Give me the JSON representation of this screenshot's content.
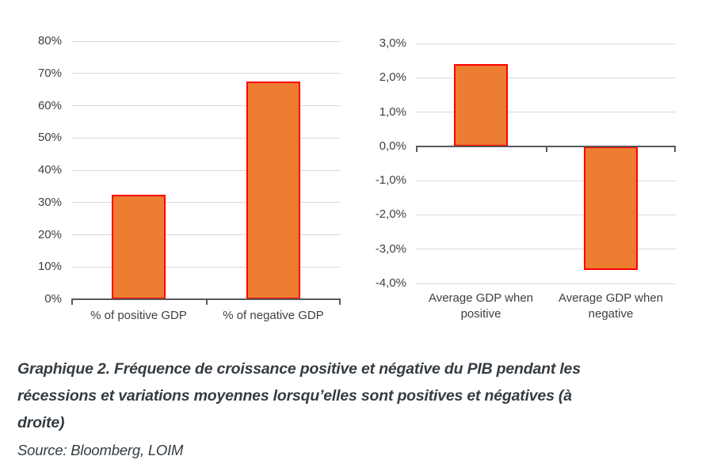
{
  "chart_data": [
    {
      "type": "bar",
      "title": "",
      "categories": [
        "% of positive GDP",
        "% of negative GDP"
      ],
      "values": [
        32.5,
        67.5
      ],
      "ylim": [
        0,
        80
      ],
      "yticks": [
        {
          "value": 80,
          "label": "80%"
        },
        {
          "value": 70,
          "label": "70%"
        },
        {
          "value": 60,
          "label": "60%"
        },
        {
          "value": 50,
          "label": "50%"
        },
        {
          "value": 40,
          "label": "40%"
        },
        {
          "value": 30,
          "label": "30%"
        },
        {
          "value": 20,
          "label": "20%"
        },
        {
          "value": 10,
          "label": "10%"
        },
        {
          "value": 0,
          "label": "0%"
        }
      ],
      "grid": true,
      "legend": false,
      "bar_fill": "#ED7D31",
      "bar_border": "#FF0000"
    },
    {
      "type": "bar",
      "title": "",
      "categories": [
        "Average GDP when positive",
        "Average GDP when negative"
      ],
      "values": [
        2.4,
        -3.6
      ],
      "ylim": [
        -4,
        3
      ],
      "yticks": [
        {
          "value": 3,
          "label": "3,0%"
        },
        {
          "value": 2,
          "label": "2,0%"
        },
        {
          "value": 1,
          "label": "1,0%"
        },
        {
          "value": 0,
          "label": "0,0%"
        },
        {
          "value": -1,
          "label": "-1,0%"
        },
        {
          "value": -2,
          "label": "-2,0%"
        },
        {
          "value": -3,
          "label": "-3,0%"
        },
        {
          "value": -4,
          "label": "-4,0%"
        }
      ],
      "grid": true,
      "legend": false,
      "bar_fill": "#ED7D31",
      "bar_border": "#FF0000"
    }
  ],
  "caption": {
    "lines": [
      "Graphique 2. Fréquence de croissance positive et négative du PIB pendant les",
      "récessions et variations moyennes lorsqu’elles sont positives et négatives (à",
      "droite)"
    ]
  },
  "source_text": "Source: Bloomberg, LOIM",
  "colors": {
    "bar_fill": "#ED7D31",
    "bar_border": "#FF0000",
    "gridline": "#D9D9D9",
    "axis_line": "#595959",
    "tick_label": "#404040",
    "caption_text": "#343C42"
  }
}
